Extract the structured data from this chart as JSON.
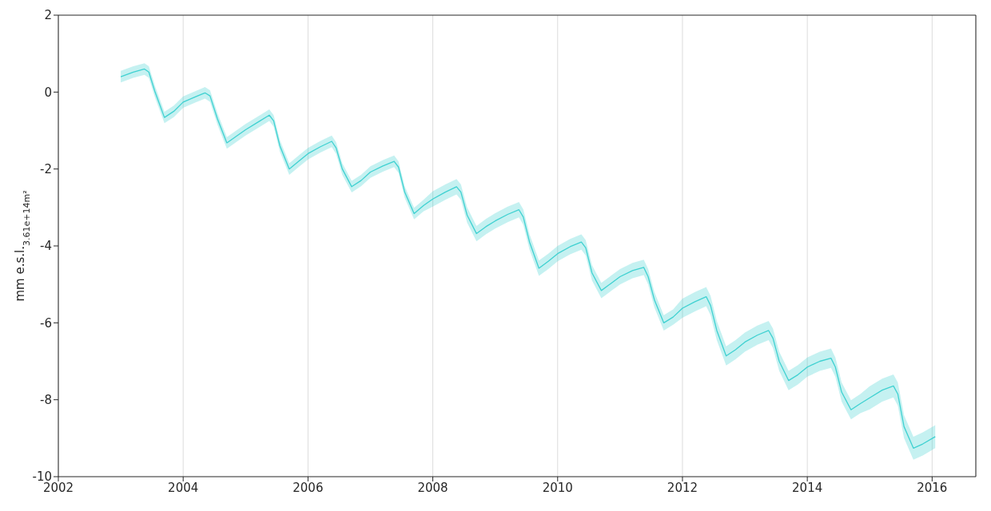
{
  "chart_data": {
    "type": "line",
    "ylabel": "mm e.s.l.$_{3.61e+14m²}$",
    "xlim": [
      2002,
      2016.7
    ],
    "xticks": [
      2002,
      2004,
      2006,
      2008,
      2010,
      2012,
      2014,
      2016
    ],
    "ylim": [
      -10,
      2
    ],
    "yticks": [
      -10,
      -8,
      -6,
      -4,
      -2,
      0,
      2
    ],
    "grid": "x",
    "marker": "none",
    "line_style": "solid",
    "series": [
      {
        "color": "#3fd1d1",
        "x": [
          2003.0,
          2003.2,
          2003.38,
          2003.45,
          2003.55,
          2003.7,
          2003.85,
          2004.0,
          2004.2,
          2004.35,
          2004.43,
          2004.55,
          2004.7,
          2004.85,
          2005.0,
          2005.2,
          2005.38,
          2005.45,
          2005.55,
          2005.7,
          2005.85,
          2006.0,
          2006.2,
          2006.38,
          2006.45,
          2006.55,
          2006.7,
          2006.85,
          2007.0,
          2007.2,
          2007.38,
          2007.45,
          2007.55,
          2007.7,
          2007.85,
          2008.0,
          2008.2,
          2008.38,
          2008.45,
          2008.55,
          2008.7,
          2008.85,
          2009.0,
          2009.2,
          2009.38,
          2009.45,
          2009.55,
          2009.7,
          2009.85,
          2010.0,
          2010.2,
          2010.38,
          2010.45,
          2010.55,
          2010.7,
          2010.85,
          2011.0,
          2011.2,
          2011.38,
          2011.45,
          2011.55,
          2011.7,
          2011.85,
          2012.0,
          2012.2,
          2012.38,
          2012.45,
          2012.55,
          2012.7,
          2012.85,
          2013.0,
          2013.2,
          2013.38,
          2013.45,
          2013.55,
          2013.7,
          2013.85,
          2014.0,
          2014.2,
          2014.38,
          2014.45,
          2014.55,
          2014.7,
          2014.85,
          2015.0,
          2015.2,
          2015.38,
          2015.45,
          2015.55,
          2015.7,
          2015.85,
          2016.05
        ],
        "values": [
          0.4,
          0.52,
          0.6,
          0.52,
          0.0,
          -0.66,
          -0.5,
          -0.26,
          -0.12,
          -0.02,
          -0.1,
          -0.7,
          -1.32,
          -1.15,
          -0.98,
          -0.78,
          -0.6,
          -0.75,
          -1.4,
          -2.0,
          -1.8,
          -1.6,
          -1.42,
          -1.28,
          -1.45,
          -2.0,
          -2.46,
          -2.3,
          -2.08,
          -1.92,
          -1.8,
          -1.95,
          -2.6,
          -3.16,
          -2.95,
          -2.78,
          -2.6,
          -2.46,
          -2.6,
          -3.2,
          -3.68,
          -3.5,
          -3.35,
          -3.18,
          -3.06,
          -3.25,
          -3.9,
          -4.58,
          -4.4,
          -4.2,
          -4.02,
          -3.9,
          -4.05,
          -4.7,
          -5.16,
          -4.98,
          -4.8,
          -4.64,
          -4.56,
          -4.8,
          -5.4,
          -6.0,
          -5.85,
          -5.62,
          -5.45,
          -5.32,
          -5.55,
          -6.2,
          -6.86,
          -6.7,
          -6.5,
          -6.32,
          -6.2,
          -6.4,
          -7.0,
          -7.5,
          -7.35,
          -7.15,
          -7.0,
          -6.92,
          -7.15,
          -7.8,
          -8.26,
          -8.1,
          -7.95,
          -7.75,
          -7.64,
          -7.85,
          -8.7,
          -9.26,
          -9.15,
          -8.96
        ],
        "lower": [
          0.25,
          0.37,
          0.45,
          0.37,
          -0.15,
          -0.81,
          -0.65,
          -0.41,
          -0.27,
          -0.17,
          -0.25,
          -0.85,
          -1.47,
          -1.3,
          -1.13,
          -0.93,
          -0.75,
          -0.9,
          -1.55,
          -2.15,
          -1.95,
          -1.75,
          -1.57,
          -1.43,
          -1.6,
          -2.15,
          -2.61,
          -2.45,
          -2.23,
          -2.07,
          -1.95,
          -2.1,
          -2.75,
          -3.31,
          -3.1,
          -2.98,
          -2.8,
          -2.66,
          -2.8,
          -3.4,
          -3.88,
          -3.7,
          -3.55,
          -3.38,
          -3.26,
          -3.45,
          -4.1,
          -4.78,
          -4.6,
          -4.4,
          -4.22,
          -4.1,
          -4.25,
          -4.9,
          -5.36,
          -5.18,
          -5.0,
          -4.84,
          -4.76,
          -5.0,
          -5.6,
          -6.2,
          -6.05,
          -5.87,
          -5.7,
          -5.57,
          -5.8,
          -6.45,
          -7.11,
          -6.95,
          -6.75,
          -6.57,
          -6.45,
          -6.65,
          -7.25,
          -7.75,
          -7.6,
          -7.4,
          -7.25,
          -7.17,
          -7.4,
          -8.05,
          -8.51,
          -8.35,
          -8.25,
          -8.05,
          -7.94,
          -8.15,
          -9.0,
          -9.56,
          -9.45,
          -9.26
        ],
        "upper": [
          0.55,
          0.67,
          0.75,
          0.67,
          0.15,
          -0.51,
          -0.35,
          -0.11,
          0.03,
          0.13,
          0.05,
          -0.55,
          -1.17,
          -1.0,
          -0.83,
          -0.63,
          -0.45,
          -0.6,
          -1.25,
          -1.85,
          -1.65,
          -1.45,
          -1.27,
          -1.13,
          -1.3,
          -1.85,
          -2.31,
          -2.15,
          -1.93,
          -1.77,
          -1.65,
          -1.8,
          -2.45,
          -3.01,
          -2.8,
          -2.58,
          -2.4,
          -2.26,
          -2.4,
          -3.0,
          -3.48,
          -3.3,
          -3.15,
          -2.98,
          -2.86,
          -3.05,
          -3.7,
          -4.38,
          -4.2,
          -4.0,
          -3.82,
          -3.7,
          -3.85,
          -4.5,
          -4.96,
          -4.78,
          -4.6,
          -4.44,
          -4.36,
          -4.6,
          -5.2,
          -5.8,
          -5.65,
          -5.37,
          -5.2,
          -5.07,
          -5.3,
          -5.95,
          -6.61,
          -6.45,
          -6.25,
          -6.07,
          -5.95,
          -6.15,
          -6.75,
          -7.25,
          -7.1,
          -6.9,
          -6.75,
          -6.67,
          -6.9,
          -7.55,
          -8.01,
          -7.85,
          -7.65,
          -7.45,
          -7.34,
          -7.55,
          -8.4,
          -8.96,
          -8.85,
          -8.66
        ]
      }
    ]
  }
}
